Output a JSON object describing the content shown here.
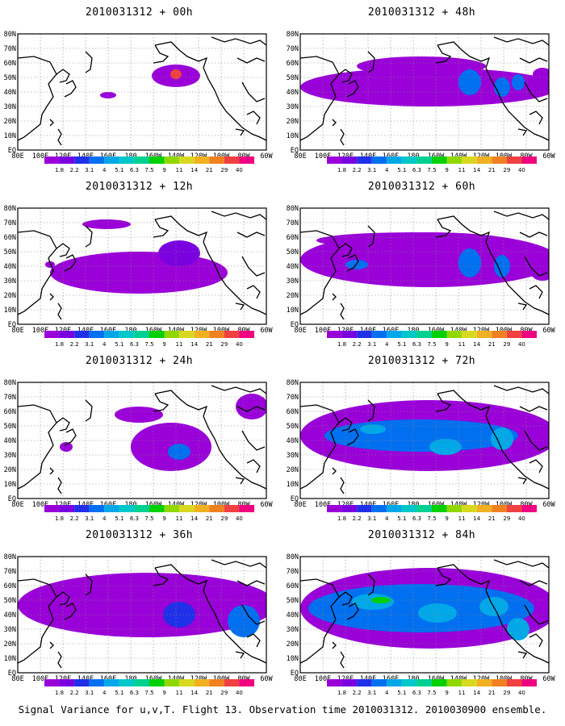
{
  "figure": {
    "caption": "Signal Variance for u,v,T. Flight 13. Observation time 2010031312. 2010030900 ensemble."
  },
  "axes": {
    "lon_labels": [
      "80E",
      "100E",
      "120E",
      "140E",
      "160E",
      "180",
      "160W",
      "140W",
      "120W",
      "100W",
      "80W",
      "60W"
    ],
    "lat_labels": [
      "EQ",
      "10N",
      "20N",
      "30N",
      "40N",
      "50N",
      "60N",
      "70N",
      "80N"
    ]
  },
  "colorbar": {
    "levels": [
      "1.8",
      "2.2",
      "3.1",
      "4",
      "5.1",
      "6.3",
      "7.5",
      "9",
      "11",
      "14",
      "21",
      "29",
      "40"
    ],
    "colors": [
      "#9a00d8",
      "#7a00e0",
      "#2030e8",
      "#0070f0",
      "#00a8e8",
      "#00c8c8",
      "#00d090",
      "#00d000",
      "#90d800",
      "#d8d820",
      "#f0b020",
      "#f08020",
      "#f04040",
      "#f00080"
    ]
  },
  "panels": [
    {
      "title": "2010031312 + 00h"
    },
    {
      "title": "2010031312 + 48h"
    },
    {
      "title": "2010031312 + 12h"
    },
    {
      "title": "2010031312 + 60h"
    },
    {
      "title": "2010031312 + 24h"
    },
    {
      "title": "2010031312 + 72h"
    },
    {
      "title": "2010031312 + 36h"
    },
    {
      "title": "2010031312 + 84h"
    }
  ]
}
